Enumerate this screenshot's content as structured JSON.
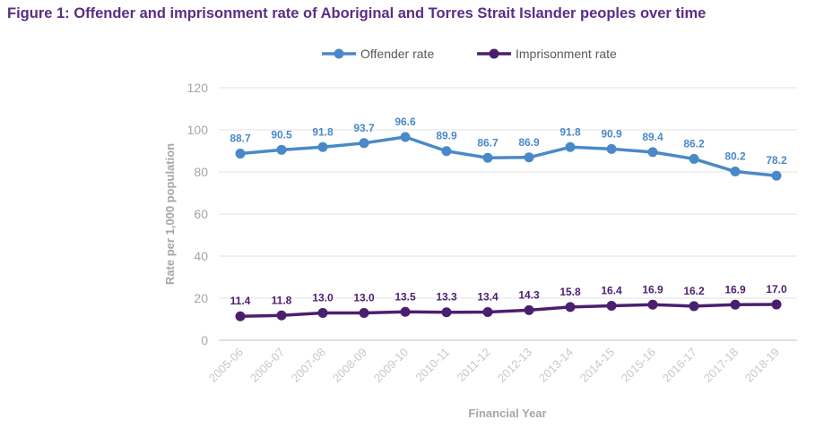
{
  "figure": {
    "title": "Figure 1: Offender and imprisonment rate of Aboriginal and Torres Strait Islander peoples over time"
  },
  "chart_data": {
    "type": "line",
    "title": "Figure 1: Offender and imprisonment rate of Aboriginal and Torres Strait Islander peoples over time",
    "xlabel": "Financial Year",
    "ylabel": "Rate per 1,000 population",
    "ylim": [
      0,
      120
    ],
    "yticks": [
      "0",
      "20",
      "40",
      "60",
      "80",
      "100",
      "120"
    ],
    "grid": true,
    "legend_position": "top-center",
    "categories": [
      "2005-06",
      "2006-07",
      "2007-08",
      "2008-09",
      "2009-10",
      "2010-11",
      "2011-12",
      "2012-13",
      "2013-14",
      "2014-15",
      "2015-16",
      "2016-17",
      "2017-18",
      "2018-19"
    ],
    "series": [
      {
        "name": "Offender rate",
        "color": "#4a89c8",
        "values": [
          88.7,
          90.5,
          91.8,
          93.7,
          96.6,
          89.9,
          86.7,
          86.9,
          91.8,
          90.9,
          89.4,
          86.2,
          80.2,
          78.2
        ],
        "labels": [
          "88.7",
          "90.5",
          "91.8",
          "93.7",
          "96.6",
          "89.9",
          "86.7",
          "86.9",
          "91.8",
          "90.9",
          "89.4",
          "86.2",
          "80.2",
          "78.2"
        ]
      },
      {
        "name": "Imprisonment rate",
        "color": "#4b1f6f",
        "values": [
          11.4,
          11.8,
          13.0,
          13.0,
          13.5,
          13.3,
          13.4,
          14.3,
          15.8,
          16.4,
          16.9,
          16.2,
          16.9,
          17.0
        ],
        "labels": [
          "11.4",
          "11.8",
          "13.0",
          "13.0",
          "13.5",
          "13.3",
          "13.4",
          "14.3",
          "15.8",
          "16.4",
          "16.9",
          "16.2",
          "16.9",
          "17.0"
        ]
      }
    ]
  }
}
